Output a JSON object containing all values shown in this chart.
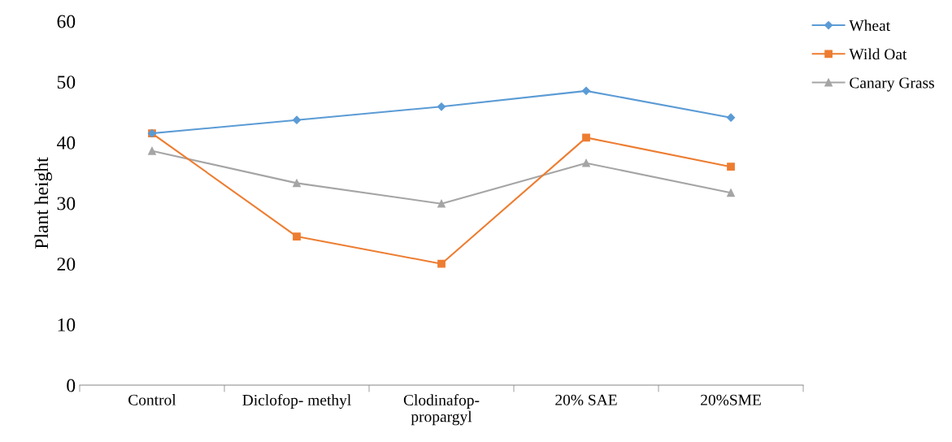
{
  "chart_data": {
    "type": "line",
    "ylabel": "Plant height",
    "categories": [
      "Control",
      "Diclofop- methyl",
      "Clodinafop-\npropargyl",
      "20% SAE",
      "20%SME"
    ],
    "series": [
      {
        "name": "Wheat",
        "color": "#5b9bd5",
        "marker": "diamond",
        "values": [
          41.5,
          43.7,
          45.9,
          48.5,
          44.1
        ]
      },
      {
        "name": "Wild Oat",
        "color": "#ed7d31",
        "marker": "square",
        "values": [
          41.5,
          24.5,
          20.0,
          40.8,
          36.0
        ]
      },
      {
        "name": "Canary Grass",
        "color": "#a5a5a5",
        "marker": "triangle",
        "values": [
          38.6,
          33.3,
          29.9,
          36.6,
          31.7
        ]
      }
    ],
    "ylim": [
      0,
      60
    ],
    "yticks": [
      0,
      10,
      20,
      30,
      40,
      50,
      60
    ],
    "grid": false,
    "legend": "top right",
    "line_style": "solid"
  }
}
